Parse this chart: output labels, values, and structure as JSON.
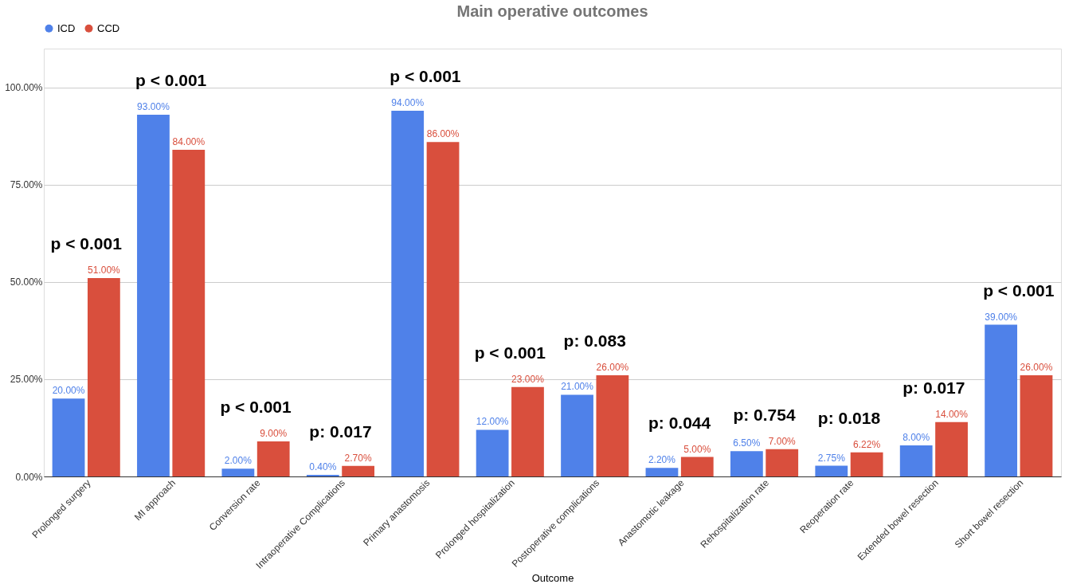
{
  "chart_data": {
    "type": "bar",
    "title": "Main operative outcomes",
    "xlabel": "Outcome",
    "categories": [
      "Prolonged surgery",
      "MI approach",
      "Conversion rate",
      "Intraoperative Complications",
      "Primary anastomosis",
      "Prolonged hospitalization",
      "Postoperative complications",
      "Anastomotic leakage",
      "Rehospitalization rate",
      "Reoperation rate",
      "Extended bowel resection",
      "Short bowel resection"
    ],
    "series": [
      {
        "name": "ICD",
        "color": "#4f81e9",
        "values": [
          20,
          93,
          2,
          0.4,
          94,
          12,
          21,
          2.2,
          6.5,
          2.75,
          8,
          39
        ],
        "value_labels": [
          "20.00%",
          "93.00%",
          "2.00%",
          "0.40%",
          "94.00%",
          "12.00%",
          "21.00%",
          "2.20%",
          "6.50%",
          "2.75%",
          "8.00%",
          "39.00%"
        ]
      },
      {
        "name": "CCD",
        "color": "#d94f3d",
        "values": [
          51,
          84,
          9,
          2.7,
          86,
          23,
          26,
          5,
          7,
          6.22,
          14,
          26
        ],
        "value_labels": [
          "51.00%",
          "84.00%",
          "9.00%",
          "2.70%",
          "86.00%",
          "23.00%",
          "26.00%",
          "5.00%",
          "7.00%",
          "6.22%",
          "14.00%",
          "26.00%"
        ]
      }
    ],
    "ylim": [
      0,
      110
    ],
    "yticks": [
      {
        "value": 0,
        "label": "0.00%"
      },
      {
        "value": 25,
        "label": "25.00%"
      },
      {
        "value": 50,
        "label": "50.00%"
      },
      {
        "value": 75,
        "label": "75.00%"
      },
      {
        "value": 100,
        "label": "100.00%"
      }
    ],
    "grid": "y",
    "legend": "top",
    "annotations": [
      "p < 0.001",
      "p < 0.001",
      "p < 0.001",
      "p: 0.017",
      "p < 0.001",
      "p < 0.001",
      "p: 0.083",
      "p: 0.044",
      "p: 0.754",
      "p: 0.018",
      "p: 0.017",
      "p < 0.001"
    ]
  }
}
